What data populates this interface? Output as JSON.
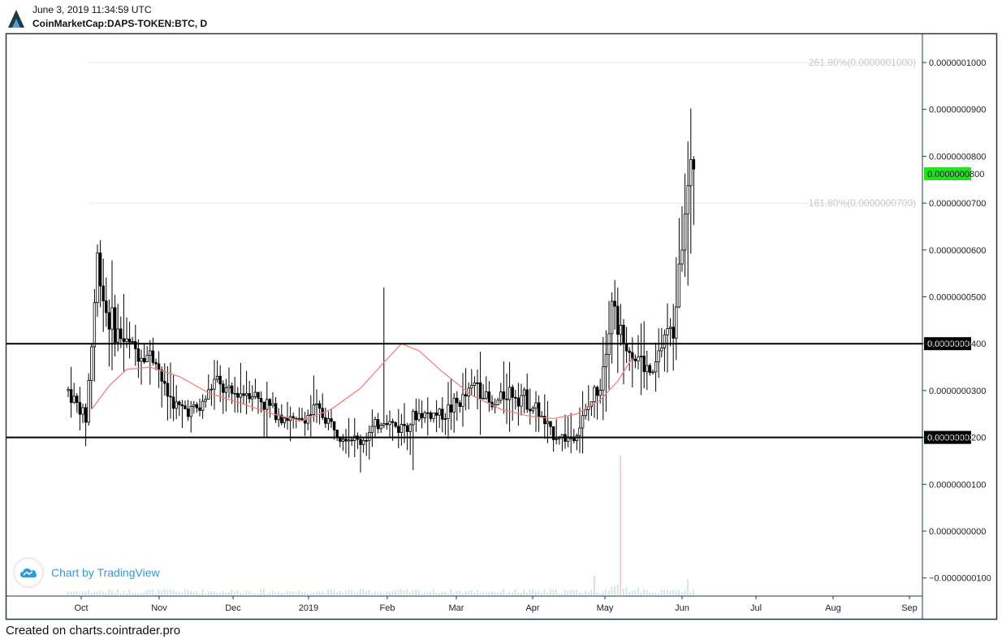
{
  "header": {
    "datetime": "June 3, 2019 11:34:59 UTC",
    "symbol": "CoinMarketCap:DAPS-TOKEN:BTC, D"
  },
  "footer": {
    "text": "Created on charts.cointrader.pro"
  },
  "watermark": {
    "text": "Chart by TradingView"
  },
  "colors": {
    "candle": "#000000",
    "moving_average": "#f08080",
    "last_price_badge": "#22e022",
    "level_line": "#000000",
    "volume": "#c7e4e0",
    "volume_spike": "#f6c6cf"
  },
  "chart_data": {
    "type": "candlestick",
    "interval": "D",
    "y_range": [
      -1.05e-08,
      1.07e-07
    ],
    "y_tick_values": [
      -1e-08,
      0,
      1e-08,
      2e-08,
      3e-08,
      4e-08,
      5e-08,
      6e-08,
      7e-08,
      8e-08,
      9e-08,
      1e-07
    ],
    "y_tick_labels": [
      "−0.0000000100",
      "0.0000000000",
      "0.0000000100",
      "0.0000000200",
      "0.0000000300",
      "0.0000000400",
      "0.0000000500",
      "0.0000000600",
      "0.0000000700",
      "0.0000000800",
      "0.0000000900",
      "0.0000001000"
    ],
    "x_months": [
      "Oct",
      "Nov",
      "Dec",
      "2019",
      "Feb",
      "Mar",
      "Apr",
      "May",
      "Jun",
      "Jul",
      "Aug",
      "Sep"
    ],
    "last_price": {
      "value": 8e-08,
      "label": "0.0000000800"
    },
    "horizontal_levels": [
      {
        "value": 4e-08,
        "label": "0.0000000400"
      },
      {
        "value": 2e-08,
        "label": "0.0000000200"
      }
    ],
    "fib_levels": [
      {
        "value": 1e-07,
        "label": "261.80%(0.0000001000)"
      },
      {
        "value": 7e-08,
        "label": "161.80%(0.0000000700)"
      }
    ],
    "price_path": [
      [
        0,
        3e-08
      ],
      [
        3,
        2.7e-08
      ],
      [
        6,
        2.4e-08
      ],
      [
        8,
        4e-08
      ],
      [
        10,
        5.8e-08
      ],
      [
        13,
        4.7e-08
      ],
      [
        16,
        4.3e-08
      ],
      [
        20,
        4e-08
      ],
      [
        25,
        3.8e-08
      ],
      [
        30,
        3.7e-08
      ],
      [
        33,
        3e-08
      ],
      [
        38,
        2.6e-08
      ],
      [
        45,
        2.6e-08
      ],
      [
        50,
        3.2e-08
      ],
      [
        55,
        2.9e-08
      ],
      [
        62,
        3e-08
      ],
      [
        70,
        2.6e-08
      ],
      [
        78,
        2.3e-08
      ],
      [
        85,
        2.6e-08
      ],
      [
        93,
        2.1e-08
      ],
      [
        100,
        1.9e-08
      ],
      [
        108,
        2.4e-08
      ],
      [
        113,
        2.2e-08
      ],
      [
        120,
        2.5e-08
      ],
      [
        128,
        2.5e-08
      ],
      [
        135,
        2.8e-08
      ],
      [
        140,
        3.2e-08
      ],
      [
        145,
        2.6e-08
      ],
      [
        150,
        3e-08
      ],
      [
        155,
        2.9e-08
      ],
      [
        160,
        2.6e-08
      ],
      [
        165,
        2.1e-08
      ],
      [
        170,
        2e-08
      ],
      [
        173,
        2e-08
      ],
      [
        177,
        2.5e-08
      ],
      [
        182,
        3.2e-08
      ],
      [
        186,
        4.9e-08
      ],
      [
        190,
        4e-08
      ],
      [
        195,
        3.7e-08
      ],
      [
        200,
        3.3e-08
      ],
      [
        204,
        4.2e-08
      ],
      [
        207,
        4.3e-08
      ],
      [
        209,
        6e-08
      ],
      [
        211,
        6.9e-08
      ],
      [
        213,
        7.5e-08
      ],
      [
        214,
        8e-08
      ]
    ],
    "moving_average": [
      [
        8,
        2.6e-08
      ],
      [
        14,
        3.1e-08
      ],
      [
        20,
        3.45e-08
      ],
      [
        28,
        3.5e-08
      ],
      [
        38,
        3.3e-08
      ],
      [
        48,
        2.95e-08
      ],
      [
        58,
        2.75e-08
      ],
      [
        70,
        2.5e-08
      ],
      [
        80,
        2.35e-08
      ],
      [
        90,
        2.6e-08
      ],
      [
        100,
        3.05e-08
      ],
      [
        108,
        3.6e-08
      ],
      [
        114,
        4e-08
      ],
      [
        120,
        3.85e-08
      ],
      [
        128,
        3.4e-08
      ],
      [
        138,
        2.9e-08
      ],
      [
        148,
        2.6e-08
      ],
      [
        158,
        2.45e-08
      ],
      [
        166,
        2.4e-08
      ],
      [
        174,
        2.5e-08
      ],
      [
        182,
        2.8e-08
      ],
      [
        188,
        3.2e-08
      ],
      [
        193,
        3.7e-08
      ]
    ]
  }
}
